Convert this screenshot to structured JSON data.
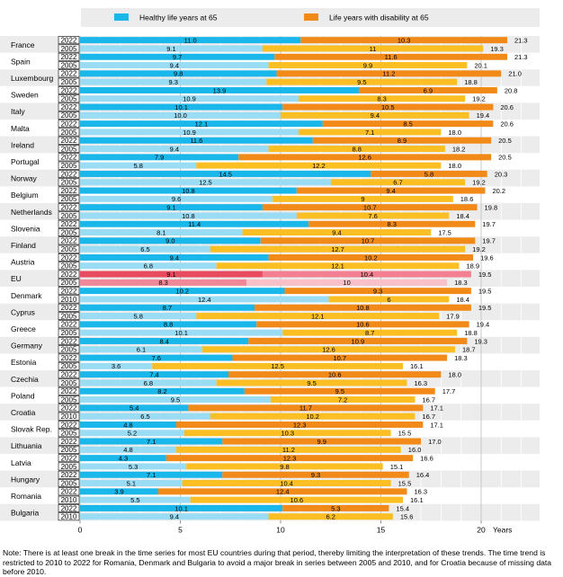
{
  "chart_data": {
    "type": "bar",
    "orientation": "horizontal",
    "stacked": true,
    "legend": {
      "position": "top",
      "items": [
        {
          "label": "Healthy life years at 65",
          "color": "#1ab8ea"
        },
        {
          "label": "Life years with disability at 65",
          "color": "#f28a1a"
        }
      ]
    },
    "xlabel": "Years",
    "xlim": [
      0,
      22
    ],
    "xticks": [
      0,
      5,
      10,
      15,
      20
    ],
    "grid": true,
    "colors": {
      "healthy_latest": "#1ab8ea",
      "healthy_earlier": "#9adcf4",
      "disability_latest": "#f28a1a",
      "disability_earlier": "#fbbf24",
      "eu_healthy_latest": "#e84a5f",
      "eu_healthy_earlier": "#f08897",
      "eu_disability_latest": "#f47f91",
      "eu_disability_earlier": "#f8c0c8",
      "row_shade": "#ececec"
    },
    "countries": [
      {
        "name": "France",
        "rows": [
          {
            "year": "2022",
            "healthy": 11.0,
            "disability": 10.3,
            "total": 21.3
          },
          {
            "year": "2005",
            "healthy": 9.1,
            "disability": 11,
            "total": 19.3
          }
        ]
      },
      {
        "name": "Spain",
        "rows": [
          {
            "year": "2022",
            "healthy": 9.7,
            "disability": 11.6,
            "total": 21.3
          },
          {
            "year": "2005",
            "healthy": 9.4,
            "disability": 9.9,
            "total": 20.1
          }
        ]
      },
      {
        "name": "Luxembourg",
        "rows": [
          {
            "year": "2022",
            "healthy": 9.8,
            "disability": 11.2,
            "total": 21.0
          },
          {
            "year": "2005",
            "healthy": 9.3,
            "disability": 9.5,
            "total": 18.8
          }
        ]
      },
      {
        "name": "Sweden",
        "rows": [
          {
            "year": "2022",
            "healthy": 13.9,
            "disability": 6.9,
            "total": 20.8
          },
          {
            "year": "2005",
            "healthy": 10.9,
            "disability": 8.3,
            "total": 19.2
          }
        ]
      },
      {
        "name": "Italy",
        "rows": [
          {
            "year": "2022",
            "healthy": 10.1,
            "disability": 10.5,
            "total": 20.6
          },
          {
            "year": "2005",
            "healthy": 10.0,
            "disability": 9.4,
            "total": 19.4
          }
        ]
      },
      {
        "name": "Malta",
        "rows": [
          {
            "year": "2022",
            "healthy": 12.1,
            "disability": 8.5,
            "total": 20.6
          },
          {
            "year": "2005",
            "healthy": 10.9,
            "disability": 7.1,
            "total": 18.0
          }
        ]
      },
      {
        "name": "Ireland",
        "rows": [
          {
            "year": "2022",
            "healthy": 11.6,
            "disability": 8.9,
            "total": 20.5
          },
          {
            "year": "2005",
            "healthy": 9.4,
            "disability": 8.8,
            "total": 18.2
          }
        ]
      },
      {
        "name": "Portugal",
        "rows": [
          {
            "year": "2022",
            "healthy": 7.9,
            "disability": 12.6,
            "total": 20.5
          },
          {
            "year": "2005",
            "healthy": 5.8,
            "disability": 12.2,
            "total": 18.0
          }
        ]
      },
      {
        "name": "Norway",
        "rows": [
          {
            "year": "2022",
            "healthy": 14.5,
            "disability": 5.8,
            "total": 20.3
          },
          {
            "year": "2005",
            "healthy": 12.5,
            "disability": 6.7,
            "total": 19.2
          }
        ]
      },
      {
        "name": "Belgium",
        "rows": [
          {
            "year": "2022",
            "healthy": 10.8,
            "disability": 9.4,
            "total": 20.2
          },
          {
            "year": "2005",
            "healthy": 9.6,
            "disability": 9,
            "total": 18.6
          }
        ]
      },
      {
        "name": "Netherlands",
        "rows": [
          {
            "year": "2022",
            "healthy": 9.1,
            "disability": 10.7,
            "total": 19.8
          },
          {
            "year": "2005",
            "healthy": 10.8,
            "disability": 7.6,
            "total": 18.4
          }
        ]
      },
      {
        "name": "Slovenia",
        "rows": [
          {
            "year": "2022",
            "healthy": 11.4,
            "disability": 8.3,
            "total": 19.7
          },
          {
            "year": "2005",
            "healthy": 8.1,
            "disability": 9.4,
            "total": 17.5
          }
        ]
      },
      {
        "name": "Finland",
        "rows": [
          {
            "year": "2022",
            "healthy": 9.0,
            "disability": 10.7,
            "total": 19.7
          },
          {
            "year": "2005",
            "healthy": 6.5,
            "disability": 12.7,
            "total": 19.2
          }
        ]
      },
      {
        "name": "Austria",
        "rows": [
          {
            "year": "2022",
            "healthy": 9.4,
            "disability": 10.2,
            "total": 19.6
          },
          {
            "year": "2005",
            "healthy": 6.8,
            "disability": 12.1,
            "total": 18.9
          }
        ]
      },
      {
        "name": "EU",
        "highlight": true,
        "rows": [
          {
            "year": "2022",
            "healthy": 9.1,
            "disability": 10.4,
            "total": 19.5
          },
          {
            "year": "2005",
            "healthy": 8.3,
            "disability": 10.0,
            "total": 18.3
          }
        ]
      },
      {
        "name": "Denmark",
        "rows": [
          {
            "year": "2022",
            "healthy": 10.2,
            "disability": 9.3,
            "total": 19.5
          },
          {
            "year": "2010",
            "healthy": 12.4,
            "disability": 6,
            "total": 18.4
          }
        ]
      },
      {
        "name": "Cyprus",
        "rows": [
          {
            "year": "2022",
            "healthy": 8.7,
            "disability": 10.8,
            "total": 19.5
          },
          {
            "year": "2005",
            "healthy": 5.8,
            "disability": 12.1,
            "total": 17.9
          }
        ]
      },
      {
        "name": "Greece",
        "rows": [
          {
            "year": "2022",
            "healthy": 8.8,
            "disability": 10.6,
            "total": 19.4
          },
          {
            "year": "2005",
            "healthy": 10.1,
            "disability": 8.7,
            "total": 18.8
          }
        ]
      },
      {
        "name": "Germany",
        "rows": [
          {
            "year": "2022",
            "healthy": 8.4,
            "disability": 10.9,
            "total": 19.3
          },
          {
            "year": "2005",
            "healthy": 6.1,
            "disability": 12.6,
            "total": 18.7
          }
        ]
      },
      {
        "name": "Estonia",
        "rows": [
          {
            "year": "2022",
            "healthy": 7.6,
            "disability": 10.7,
            "total": 18.3
          },
          {
            "year": "2005",
            "healthy": 3.6,
            "disability": 12.5,
            "total": 16.1
          }
        ]
      },
      {
        "name": "Czechia",
        "rows": [
          {
            "year": "2022",
            "healthy": 7.4,
            "disability": 10.6,
            "total": 18.0
          },
          {
            "year": "2005",
            "healthy": 6.8,
            "disability": 9.5,
            "total": 16.3
          }
        ]
      },
      {
        "name": "Poland",
        "rows": [
          {
            "year": "2022",
            "healthy": 8.2,
            "disability": 9.5,
            "total": 17.7
          },
          {
            "year": "2005",
            "healthy": 9.5,
            "disability": 7.2,
            "total": 16.7
          }
        ]
      },
      {
        "name": "Croatia",
        "rows": [
          {
            "year": "2022",
            "healthy": 5.4,
            "disability": 11.7,
            "total": 17.1
          },
          {
            "year": "2010",
            "healthy": 6.5,
            "disability": 10.2,
            "total": 16.7
          }
        ]
      },
      {
        "name": "Slovak Rep.",
        "rows": [
          {
            "year": "2022",
            "healthy": 4.8,
            "disability": 12.3,
            "total": 17.1
          },
          {
            "year": "2005",
            "healthy": 5.2,
            "disability": 10.3,
            "total": 15.5
          }
        ]
      },
      {
        "name": "Lithuania",
        "rows": [
          {
            "year": "2022",
            "healthy": 7.1,
            "disability": 9.9,
            "total": 17.0
          },
          {
            "year": "2005",
            "healthy": 4.8,
            "disability": 11.2,
            "total": 16.0
          }
        ]
      },
      {
        "name": "Latvia",
        "rows": [
          {
            "year": "2022",
            "healthy": 4.3,
            "disability": 12.3,
            "total": 16.6
          },
          {
            "year": "2005",
            "healthy": 5.3,
            "disability": 9.8,
            "total": 15.1
          }
        ]
      },
      {
        "name": "Hungary",
        "rows": [
          {
            "year": "2022",
            "healthy": 7.1,
            "disability": 9.3,
            "total": 16.4
          },
          {
            "year": "2005",
            "healthy": 5.1,
            "disability": 10.4,
            "total": 15.5
          }
        ]
      },
      {
        "name": "Romania",
        "rows": [
          {
            "year": "2022",
            "healthy": 3.9,
            "disability": 12.4,
            "total": 16.3
          },
          {
            "year": "2010",
            "healthy": 5.5,
            "disability": 10.6,
            "total": 16.1
          }
        ]
      },
      {
        "name": "Bulgaria",
        "rows": [
          {
            "year": "2022",
            "healthy": 10.1,
            "disability": 5.3,
            "total": 15.4
          },
          {
            "year": "2010",
            "healthy": 9.4,
            "disability": 6.2,
            "total": 15.6
          }
        ]
      }
    ]
  },
  "note": "Note: There is at least one break in the time series for most EU countries during that period, thereby limiting the interpretation of these trends. The time trend is restricted to 2010 to 2022 for Romania, Denmark and Bulgaria to avoid a major break in series between 2005 and 2010, and for Croatia because of missing data before 2010."
}
